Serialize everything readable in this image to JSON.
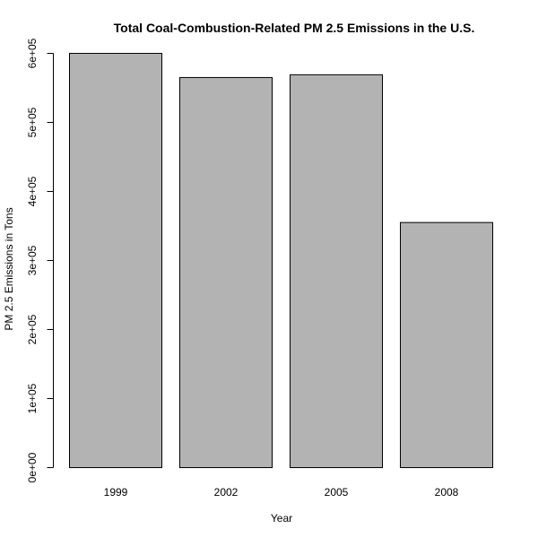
{
  "chart_data": {
    "type": "bar",
    "title": "Total Coal-Combustion-Related PM 2.5 Emissions in the U.S.",
    "xlabel": "Year",
    "ylabel": "PM 2.5 Emissions in Tons",
    "categories": [
      "1999",
      "2002",
      "2005",
      "2008"
    ],
    "values": [
      600000,
      565000,
      569000,
      355000
    ],
    "ylim": [
      0,
      600000
    ],
    "yticks": [
      0,
      100000,
      200000,
      300000,
      400000,
      500000,
      600000
    ],
    "ytick_labels": [
      "0e+00",
      "1e+05",
      "2e+05",
      "3e+05",
      "4e+05",
      "5e+05",
      "6e+05"
    ],
    "bar_color": "#b3b3b3",
    "grid": false,
    "legend": "none"
  }
}
